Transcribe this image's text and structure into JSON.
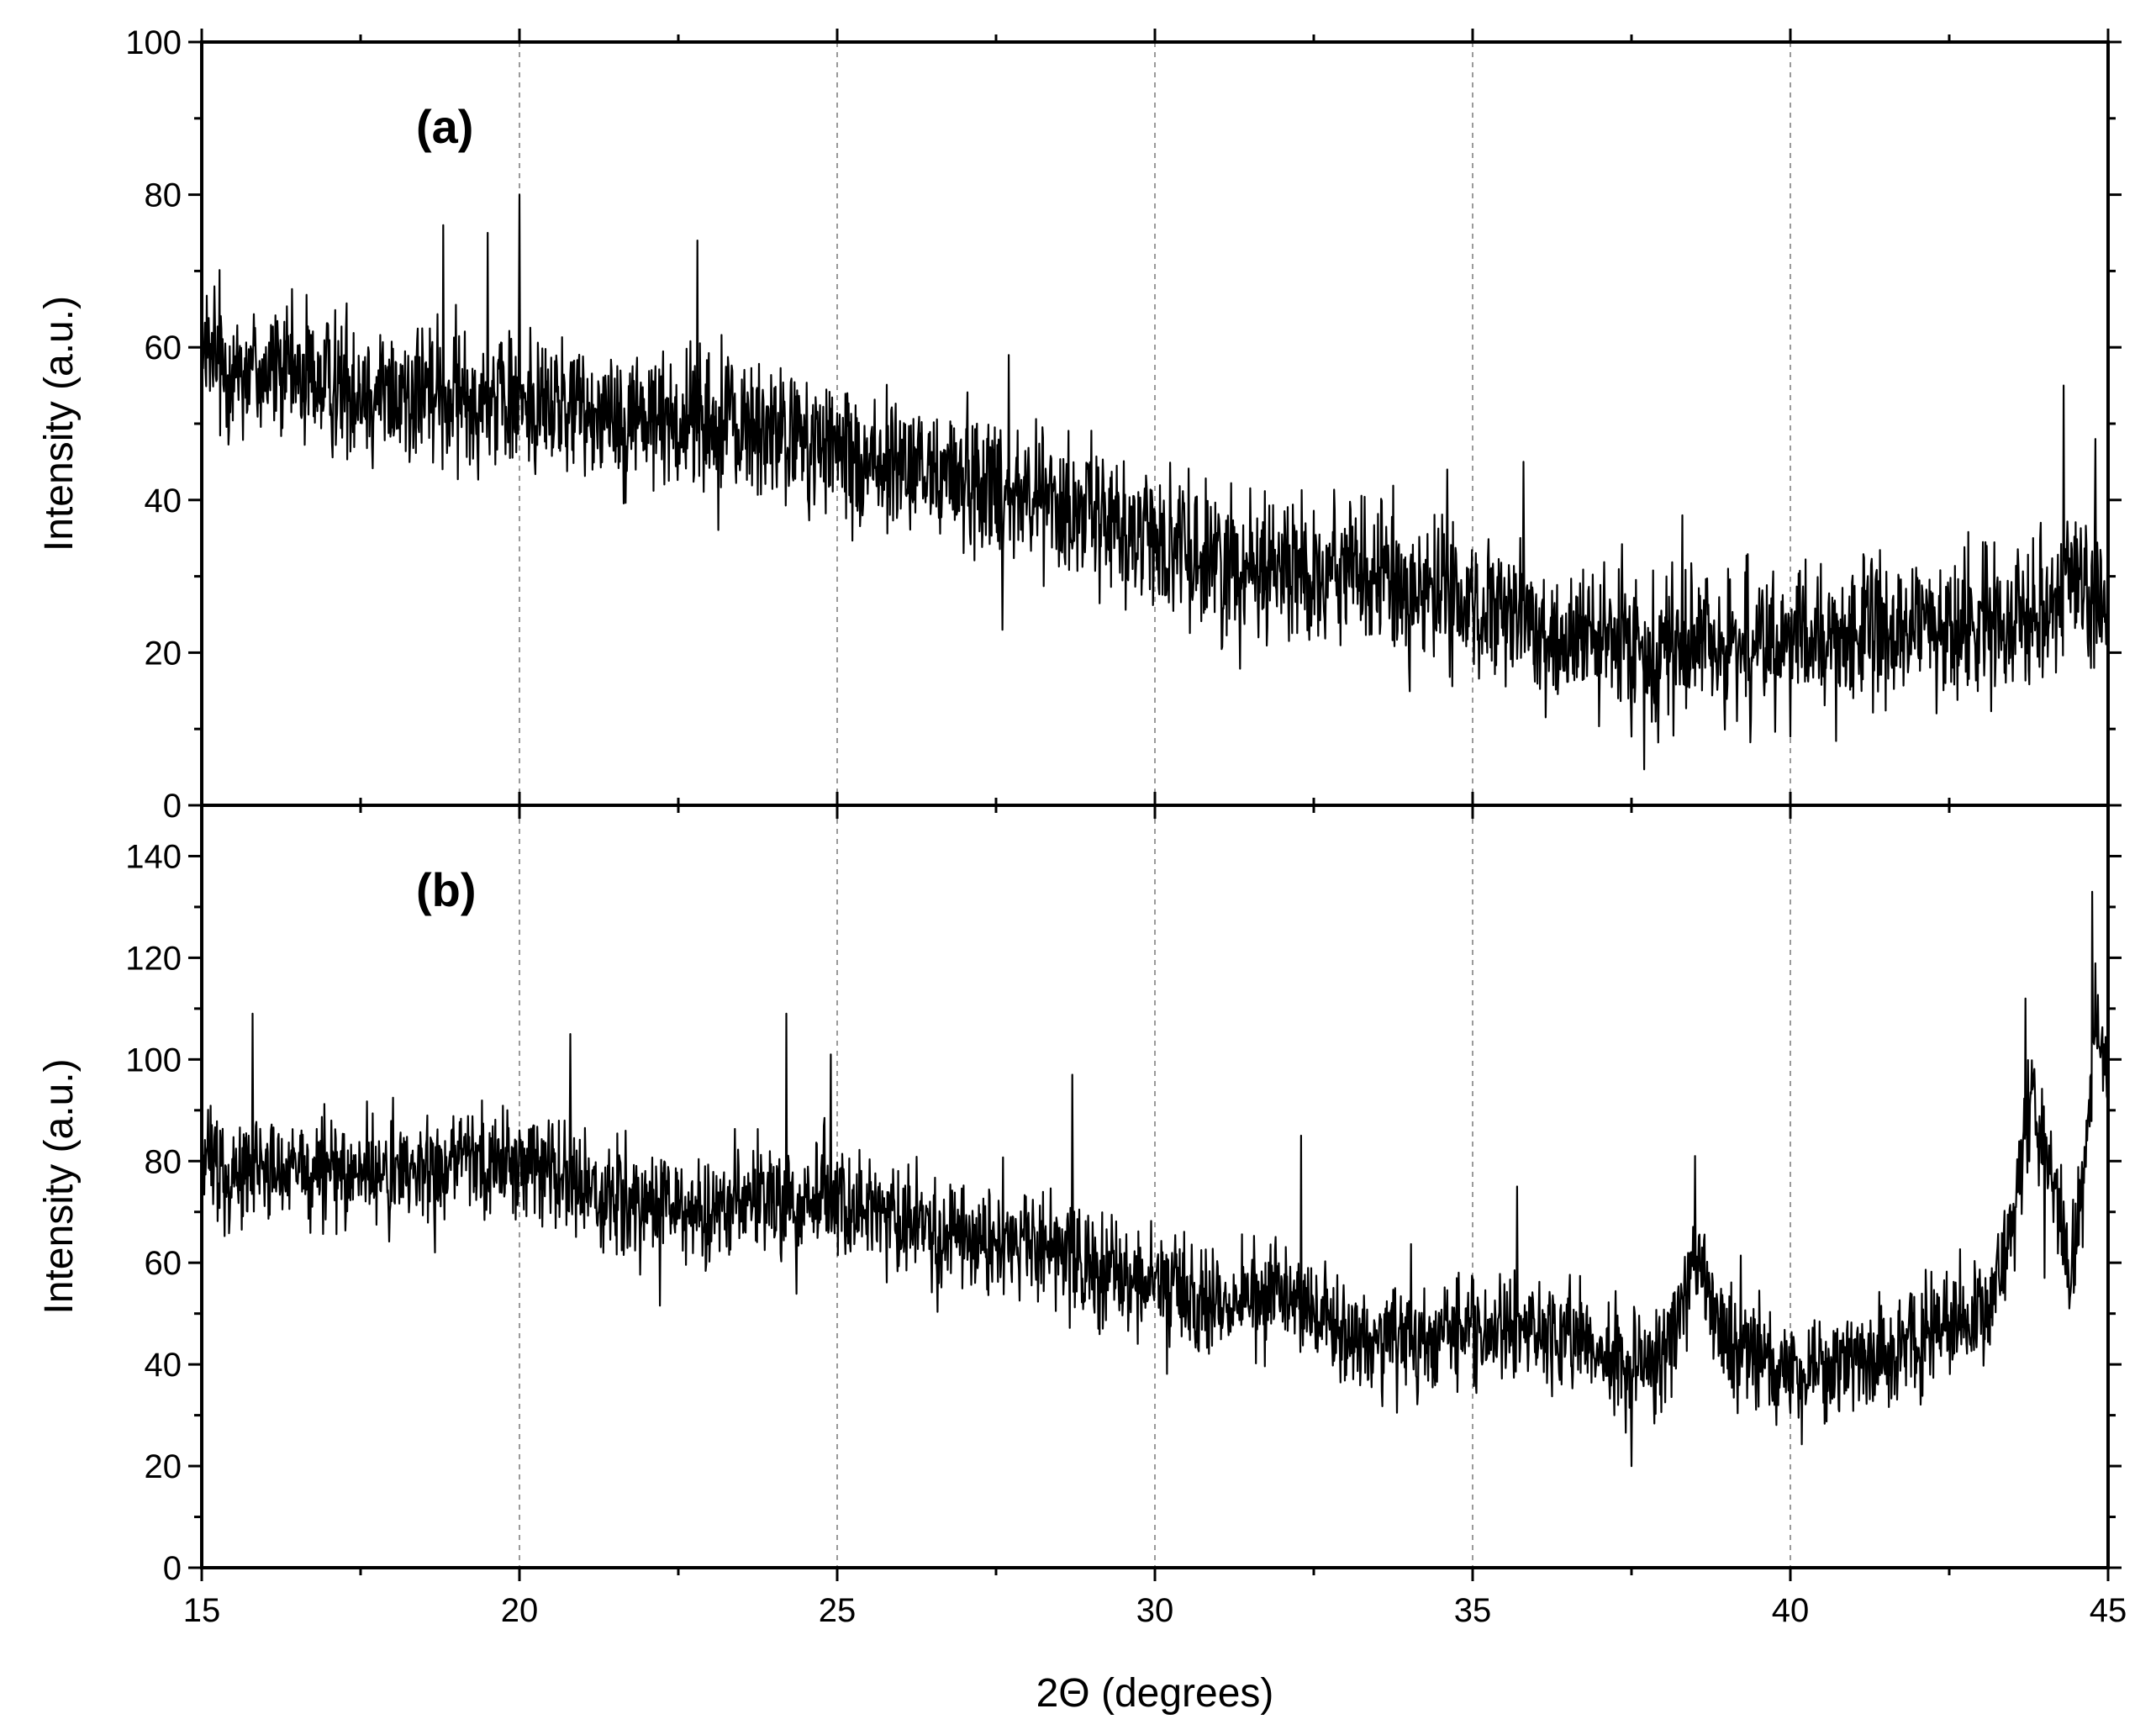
{
  "chart_data": {
    "type": "line",
    "xlabel": "2Θ (degrees)",
    "xlim": [
      15,
      45
    ],
    "x_ticks": [
      "15",
      "20",
      "25",
      "30",
      "35",
      "40",
      "45"
    ],
    "x_tick_values": [
      15,
      20,
      25,
      30,
      35,
      40,
      45
    ],
    "vertical_grid": true,
    "line_color": "#000000",
    "grid_color": "#9a9a9a",
    "panels": [
      {
        "label": "(a)",
        "ylabel": "Intensity (a.u.)",
        "ylim": [
          0,
          100
        ],
        "y_ticks": [
          "0",
          "20",
          "40",
          "60",
          "80",
          "100"
        ],
        "y_tick_values": [
          0,
          20,
          40,
          60,
          80,
          100
        ],
        "trend_x": [
          15,
          16,
          18,
          20,
          22,
          24,
          25,
          26,
          27,
          28,
          29,
          30,
          31,
          32,
          33,
          34,
          35,
          36,
          37,
          38,
          39,
          40,
          41,
          42,
          43,
          44,
          44.5,
          45
        ],
        "trend_y": [
          58,
          57,
          54,
          53,
          51,
          49,
          46,
          44,
          43,
          41,
          38,
          35,
          32,
          31,
          31,
          28,
          26,
          23,
          21,
          21,
          21,
          21,
          22,
          23,
          24,
          27,
          30,
          25
        ],
        "noise": 7,
        "peaks": [
          {
            "x": 15.2,
            "y": 68
          },
          {
            "x": 18.8,
            "y": 76
          },
          {
            "x": 19.5,
            "y": 75
          },
          {
            "x": 20.0,
            "y": 80
          },
          {
            "x": 22.8,
            "y": 74
          },
          {
            "x": 27.7,
            "y": 59
          },
          {
            "x": 34.6,
            "y": 44
          },
          {
            "x": 35.8,
            "y": 45
          },
          {
            "x": 38.3,
            "y": 38
          },
          {
            "x": 44.3,
            "y": 55
          },
          {
            "x": 44.8,
            "y": 48
          }
        ],
        "dips": [
          {
            "x": 27.6,
            "y": 23
          },
          {
            "x": 37.5,
            "y": 9
          },
          {
            "x": 40.0,
            "y": 9
          },
          {
            "x": 45.0,
            "y": 12
          }
        ]
      },
      {
        "label": "(b)",
        "ylabel": "Intensity (a.u.)",
        "ylim": [
          0,
          150
        ],
        "y_ticks": [
          "0",
          "20",
          "40",
          "60",
          "80",
          "100",
          "120",
          "140"
        ],
        "y_tick_values": [
          0,
          20,
          40,
          60,
          80,
          100,
          120,
          140
        ],
        "trend_x": [
          15,
          16,
          18,
          20,
          21,
          22,
          24,
          25,
          26,
          27,
          28,
          29,
          30,
          31,
          32,
          33,
          34,
          35,
          36,
          37,
          38,
          38.5,
          39,
          40,
          41,
          42,
          43,
          43.5,
          43.8,
          44.1,
          44.4,
          44.6,
          44.8,
          45
        ],
        "trend_y": [
          80,
          78,
          78,
          80,
          75,
          70,
          72,
          72,
          68,
          65,
          63,
          60,
          55,
          52,
          55,
          46,
          45,
          46,
          48,
          42,
          40,
          60,
          45,
          38,
          40,
          45,
          50,
          65,
          95,
          80,
          58,
          75,
          110,
          95
        ],
        "noise": 8,
        "peaks": [
          {
            "x": 15.8,
            "y": 109
          },
          {
            "x": 20.8,
            "y": 105
          },
          {
            "x": 24.2,
            "y": 109
          },
          {
            "x": 24.9,
            "y": 101
          },
          {
            "x": 28.7,
            "y": 97
          },
          {
            "x": 32.3,
            "y": 85
          },
          {
            "x": 35.7,
            "y": 75
          },
          {
            "x": 38.5,
            "y": 81
          },
          {
            "x": 43.7,
            "y": 112
          },
          {
            "x": 44.75,
            "y": 133
          }
        ],
        "dips": [
          {
            "x": 37.5,
            "y": 20
          },
          {
            "x": 44.0,
            "y": 57
          }
        ]
      }
    ]
  }
}
